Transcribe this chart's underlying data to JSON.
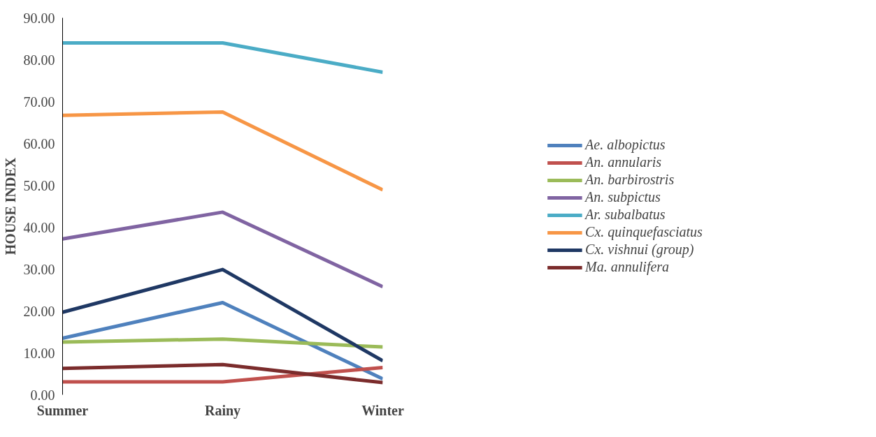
{
  "chart_data": {
    "type": "line",
    "ylabel": "HOUSE INDEX",
    "categories": [
      "Summer",
      "Rainy",
      "Winter"
    ],
    "ylim": [
      0,
      90
    ],
    "yticks": [
      {
        "value": 0,
        "label": "0.00"
      },
      {
        "value": 10,
        "label": "10.00"
      },
      {
        "value": 20,
        "label": "20.00"
      },
      {
        "value": 30,
        "label": "30.00"
      },
      {
        "value": 40,
        "label": "40.00"
      },
      {
        "value": 50,
        "label": "50.00"
      },
      {
        "value": 60,
        "label": "60.00"
      },
      {
        "value": 70,
        "label": "70.00"
      },
      {
        "value": 80,
        "label": "80.00"
      },
      {
        "value": 90,
        "label": "90.00"
      }
    ],
    "grid": false,
    "legend": "right",
    "marker": "none",
    "line_style": "solid",
    "series": [
      {
        "name": "Ae. albopictus",
        "color": "#4f81bd",
        "values": [
          13.5,
          22.0,
          3.8
        ]
      },
      {
        "name": "An. annularis",
        "color": "#c0504d",
        "values": [
          3.1,
          3.1,
          6.5
        ]
      },
      {
        "name": "An. barbirostris",
        "color": "#9bbb59",
        "values": [
          12.6,
          13.3,
          11.4
        ]
      },
      {
        "name": "An. subpictus",
        "color": "#8064a2",
        "values": [
          37.2,
          43.6,
          25.8
        ]
      },
      {
        "name": "Ar. subalbatus",
        "color": "#4bacc6",
        "values": [
          84.0,
          84.0,
          77.0
        ]
      },
      {
        "name": "Cx. quinquefasciatus",
        "color": "#f79646",
        "values": [
          66.7,
          67.5,
          48.9
        ]
      },
      {
        "name": "Cx. vishnui (group)",
        "color": "#1f3864",
        "values": [
          19.7,
          29.9,
          8.1
        ]
      },
      {
        "name": "Ma. annulifera",
        "color": "#7b2c2c",
        "values": [
          6.3,
          7.2,
          2.9
        ]
      }
    ]
  }
}
